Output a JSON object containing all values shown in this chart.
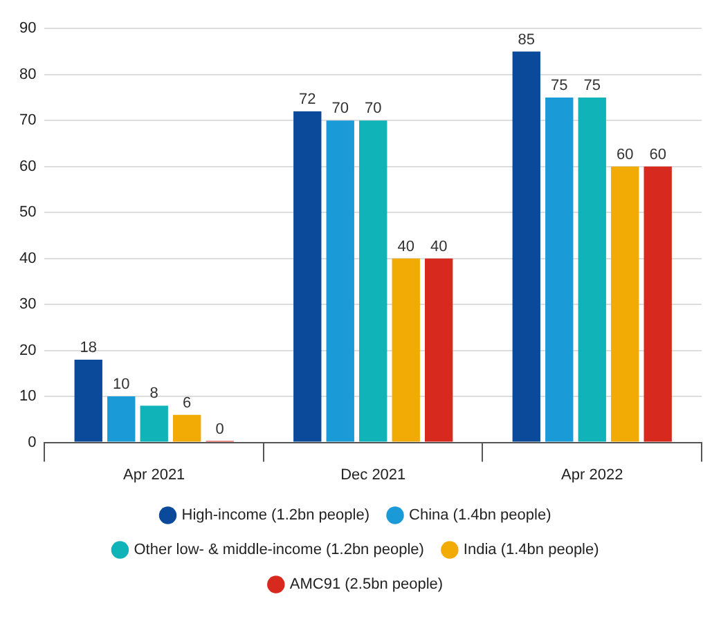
{
  "chart_data": {
    "type": "bar",
    "categories": [
      "Apr 2021",
      "Dec 2021",
      "Apr 2022"
    ],
    "series": [
      {
        "name": "High-income (1.2bn people)",
        "color": "#0b4a9a",
        "values": [
          18,
          72,
          85
        ]
      },
      {
        "name": "China (1.4bn people)",
        "color": "#1b9ad8",
        "values": [
          10,
          70,
          75
        ]
      },
      {
        "name": "Other low- & middle-income (1.2bn people)",
        "color": "#10b3b8",
        "values": [
          8,
          70,
          75
        ]
      },
      {
        "name": "India (1.4bn people)",
        "color": "#f2aa05",
        "values": [
          6,
          40,
          60
        ]
      },
      {
        "name": "AMC91 (2.5bn people)",
        "color": "#d8291f",
        "values": [
          0,
          40,
          60
        ]
      }
    ],
    "ylim": [
      0,
      90
    ],
    "yticks": [
      0,
      10,
      20,
      30,
      40,
      50,
      60,
      70,
      80,
      90
    ],
    "grid": "y",
    "legend": "bottom",
    "data_labels": true
  }
}
